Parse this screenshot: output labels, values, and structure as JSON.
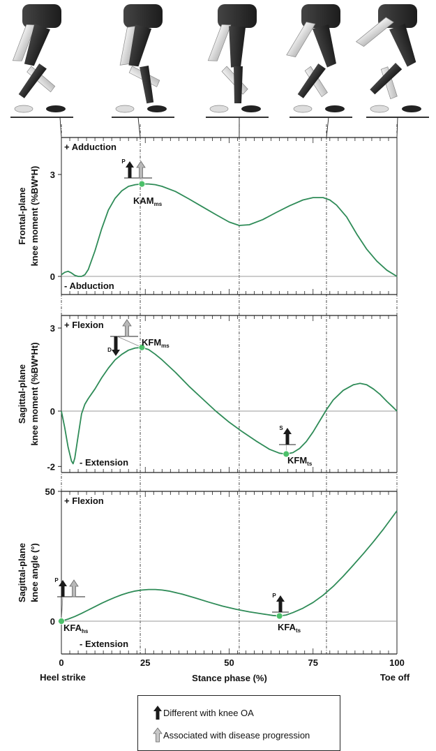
{
  "chart_data": [
    {
      "type": "line",
      "title": "",
      "ylabel": "Frontal-plane knee moment (%BW*H)",
      "ylim": [
        -0.3,
        4.1
      ],
      "yticks": [
        0,
        3
      ],
      "upper_note": "+ Adduction",
      "lower_note": "- Abduction",
      "series": [
        {
          "x": [
            0,
            1,
            2,
            3,
            4,
            5,
            6,
            7,
            8,
            10,
            12,
            14,
            16,
            18,
            20,
            22,
            24,
            26,
            28,
            30,
            34,
            38,
            42,
            46,
            50,
            53,
            56,
            60,
            64,
            68,
            72,
            75,
            78,
            80,
            82,
            85,
            88,
            91,
            94,
            97,
            100
          ],
          "y": [
            0.05,
            0.12,
            0.15,
            0.1,
            0.03,
            0.0,
            0.0,
            0.05,
            0.2,
            0.75,
            1.4,
            1.95,
            2.3,
            2.52,
            2.65,
            2.7,
            2.72,
            2.72,
            2.7,
            2.65,
            2.5,
            2.28,
            2.05,
            1.82,
            1.6,
            1.5,
            1.52,
            1.67,
            1.88,
            2.08,
            2.25,
            2.32,
            2.32,
            2.25,
            2.1,
            1.75,
            1.25,
            0.8,
            0.45,
            0.18,
            0.0
          ]
        }
      ],
      "markers": [
        {
          "x": 24,
          "y": 2.72,
          "label": "KAM",
          "sub": "ms",
          "arrows": [
            {
              "dir": "up",
              "kind": "different",
              "tag": "P"
            },
            {
              "dir": "up",
              "kind": "progression",
              "tag": ""
            }
          ]
        }
      ]
    },
    {
      "type": "line",
      "title": "",
      "ylabel": "Sagittal-plane knee moment (%BW*Ht)",
      "ylim": [
        -2.5,
        3.9
      ],
      "yticks": [
        -2,
        0,
        3
      ],
      "upper_note": "+ Flexion",
      "lower_note": "- Extension",
      "series": [
        {
          "x": [
            0,
            1,
            2,
            3,
            3.5,
            4,
            5,
            6,
            7,
            8,
            10,
            12,
            14,
            16,
            18,
            20,
            22,
            24,
            26,
            28,
            30,
            34,
            38,
            42,
            46,
            50,
            54,
            58,
            62,
            65,
            67,
            69,
            71,
            73,
            75,
            77,
            79,
            81,
            84,
            87,
            89,
            91,
            93,
            95,
            97,
            99,
            100
          ],
          "y": [
            0.0,
            -0.6,
            -1.3,
            -1.8,
            -1.9,
            -1.7,
            -0.9,
            -0.1,
            0.25,
            0.45,
            0.8,
            1.2,
            1.55,
            1.85,
            2.05,
            2.2,
            2.28,
            2.3,
            2.22,
            2.05,
            1.85,
            1.4,
            0.9,
            0.45,
            0.0,
            -0.4,
            -0.75,
            -1.08,
            -1.38,
            -1.52,
            -1.55,
            -1.5,
            -1.35,
            -1.1,
            -0.75,
            -0.35,
            0.05,
            0.4,
            0.75,
            0.95,
            1.0,
            0.95,
            0.8,
            0.6,
            0.35,
            0.12,
            0.0
          ]
        }
      ],
      "markers": [
        {
          "x": 24,
          "y": 2.3,
          "label": "KFM",
          "sub": "ms",
          "arrows": [
            {
              "dir": "down",
              "kind": "different",
              "tag": "D"
            },
            {
              "dir": "up",
              "kind": "progression",
              "tag": ""
            }
          ]
        },
        {
          "x": 67,
          "y": -1.55,
          "label": "KFM",
          "sub": "ts",
          "arrows": [
            {
              "dir": "up",
              "kind": "different",
              "tag": "S"
            }
          ]
        }
      ]
    },
    {
      "type": "line",
      "title": "",
      "ylabel": "Sagittal-plane knee angle (°)",
      "ylim": [
        -13,
        52
      ],
      "yticks": [
        0,
        50
      ],
      "upper_note": "+ Flexion",
      "lower_note": "- Extension",
      "xlabel": "Stance phase (%)",
      "xticks": [
        0,
        25,
        50,
        75,
        100
      ],
      "xlim": [
        0,
        100
      ],
      "x_left_label": "Heel strike",
      "x_right_label": "Toe off",
      "series": [
        {
          "x": [
            0,
            2,
            4,
            6,
            8,
            10,
            12,
            14,
            16,
            18,
            20,
            22,
            24,
            26,
            28,
            30,
            32,
            36,
            40,
            44,
            48,
            52,
            56,
            60,
            63,
            65,
            67,
            69,
            72,
            75,
            78,
            81,
            84,
            87,
            90,
            93,
            96,
            98,
            100
          ],
          "y": [
            0,
            0.8,
            1.8,
            3.0,
            4.3,
            5.6,
            6.9,
            8.1,
            9.2,
            10.2,
            11.0,
            11.6,
            12.0,
            12.2,
            12.2,
            12.0,
            11.6,
            10.4,
            8.9,
            7.3,
            5.8,
            4.6,
            3.6,
            2.8,
            2.2,
            2.0,
            2.4,
            3.3,
            5.0,
            7.2,
            10.0,
            13.4,
            17.3,
            21.6,
            26.0,
            30.6,
            35.5,
            39.0,
            42.5
          ]
        }
      ],
      "markers": [
        {
          "x": 0,
          "y": 0,
          "label": "KFA",
          "sub": "hs",
          "arrows": [
            {
              "dir": "up",
              "kind": "different",
              "tag": "P"
            },
            {
              "dir": "up",
              "kind": "progression",
              "tag": ""
            }
          ]
        },
        {
          "x": 65,
          "y": 2.0,
          "label": "KFA",
          "sub": "ts",
          "arrows": [
            {
              "dir": "up",
              "kind": "different",
              "tag": "P"
            }
          ]
        }
      ]
    }
  ],
  "phase_lines": [
    0,
    23.5,
    53,
    79,
    100
  ],
  "legend": {
    "different": "Different with knee OA",
    "progression": "Associated with disease progression"
  },
  "colors": {
    "curve": "#2e8b57",
    "marker": "#4cc06a",
    "arrow_dark": "#1a1a1a",
    "arrow_light": "#b8b8b8",
    "zero_line": "#9a9a9a",
    "leg_dark": "#333333",
    "leg_light": "#d9d9d9"
  }
}
